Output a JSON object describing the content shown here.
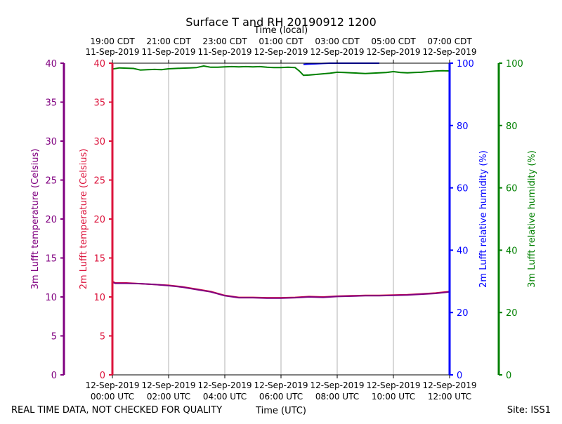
{
  "chart_data": {
    "type": "line",
    "title": "Surface T and RH 20190912 1200",
    "top_axis_label": "Time (local)",
    "xlabel": "Time (UTC)",
    "footer_left": "REAL TIME DATA, NOT CHECKED FOR QUALITY",
    "footer_right": "Site: ISS1",
    "x_range": [
      0,
      12
    ],
    "bottom_ticks": [
      {
        "x": 0,
        "line1": "12-Sep-2019",
        "line2": "00:00 UTC"
      },
      {
        "x": 2,
        "line1": "12-Sep-2019",
        "line2": "02:00 UTC"
      },
      {
        "x": 4,
        "line1": "12-Sep-2019",
        "line2": "04:00 UTC"
      },
      {
        "x": 6,
        "line1": "12-Sep-2019",
        "line2": "06:00 UTC"
      },
      {
        "x": 8,
        "line1": "12-Sep-2019",
        "line2": "08:00 UTC"
      },
      {
        "x": 10,
        "line1": "12-Sep-2019",
        "line2": "10:00 UTC"
      },
      {
        "x": 12,
        "line1": "12-Sep-2019",
        "line2": "12:00 UTC"
      }
    ],
    "top_ticks": [
      {
        "x": 0,
        "line1": "19:00 CDT",
        "line2": "11-Sep-2019"
      },
      {
        "x": 2,
        "line1": "21:00 CDT",
        "line2": "11-Sep-2019"
      },
      {
        "x": 4,
        "line1": "23:00 CDT",
        "line2": "11-Sep-2019"
      },
      {
        "x": 6,
        "line1": "01:00 CDT",
        "line2": "12-Sep-2019"
      },
      {
        "x": 8,
        "line1": "03:00 CDT",
        "line2": "12-Sep-2019"
      },
      {
        "x": 10,
        "line1": "05:00 CDT",
        "line2": "12-Sep-2019"
      },
      {
        "x": 12,
        "line1": "07:00 CDT",
        "line2": "12-Sep-2019"
      }
    ],
    "axes": {
      "t3m": {
        "label": "3m Lufft temperature (Celsius)",
        "color": "#800080",
        "range": [
          0,
          40
        ],
        "ticks": [
          0,
          5,
          10,
          15,
          20,
          25,
          30,
          35,
          40
        ]
      },
      "t2m": {
        "label": "2m Lufft temperature (Celsius)",
        "color": "#dc143c",
        "range": [
          0,
          40
        ],
        "ticks": [
          0,
          5,
          10,
          15,
          20,
          25,
          30,
          35,
          40
        ]
      },
      "rh2m": {
        "label": "2m Lufft relative humidity (%)",
        "color": "#0000ff",
        "range": [
          0,
          100
        ],
        "ticks": [
          0,
          20,
          40,
          60,
          80,
          100
        ]
      },
      "rh3m": {
        "label": "3m Lufft relative humidity (%)",
        "color": "#008000",
        "range": [
          0,
          100
        ],
        "ticks": [
          0,
          20,
          40,
          60,
          80,
          100
        ]
      }
    },
    "grid": "vertical",
    "series": [
      {
        "axis": "rh3m",
        "color": "#008000",
        "x": [
          0,
          0.25,
          0.5,
          0.75,
          1,
          1.25,
          1.5,
          1.75,
          2,
          2.25,
          2.5,
          2.75,
          3,
          3.25,
          3.5,
          3.75,
          4,
          4.25,
          4.5,
          4.75,
          5,
          5.25,
          5.5,
          5.75,
          6,
          6.25,
          6.5,
          6.65,
          6.8,
          7,
          7.25,
          7.5,
          7.75,
          8,
          8.25,
          8.5,
          8.75,
          9,
          9.25,
          9.5,
          9.75,
          10,
          10.25,
          10.5,
          10.75,
          11,
          11.25,
          11.5,
          11.75,
          12
        ],
        "y": [
          98.1,
          98.5,
          98.4,
          98.3,
          97.8,
          97.9,
          98.0,
          97.9,
          98.2,
          98.3,
          98.4,
          98.5,
          98.6,
          99.1,
          98.7,
          98.7,
          98.8,
          98.9,
          98.8,
          98.9,
          98.8,
          98.9,
          98.7,
          98.6,
          98.6,
          98.7,
          98.6,
          97.5,
          96.1,
          96.2,
          96.4,
          96.6,
          96.8,
          97.1,
          97.0,
          96.9,
          96.8,
          96.7,
          96.8,
          96.9,
          97.0,
          97.3,
          97.0,
          96.9,
          97.0,
          97.1,
          97.3,
          97.5,
          97.6,
          97.5
        ]
      },
      {
        "axis": "rh2m",
        "color": "#0000ff",
        "x": [
          6.8,
          7.0,
          7.25,
          7.5,
          7.75,
          8.0,
          8.5,
          9.0,
          9.5
        ],
        "y": [
          99.6,
          99.7,
          99.8,
          99.9,
          100,
          100,
          100,
          100,
          100
        ]
      },
      {
        "axis": "t2m",
        "color": "#dc143c",
        "x": [
          0,
          0.1,
          0.5,
          1,
          1.5,
          2,
          2.5,
          3,
          3.5,
          4,
          4.5,
          5,
          5.5,
          6,
          6.5,
          7,
          7.5,
          8,
          8.5,
          9,
          9.5,
          10,
          10.5,
          11,
          11.5,
          12
        ],
        "y": [
          12.0,
          11.8,
          11.8,
          11.7,
          11.6,
          11.5,
          11.3,
          11.0,
          10.7,
          10.2,
          9.95,
          9.95,
          9.9,
          9.9,
          9.95,
          10.05,
          10.0,
          10.1,
          10.15,
          10.2,
          10.2,
          10.25,
          10.3,
          10.4,
          10.5,
          10.7
        ]
      },
      {
        "axis": "t3m",
        "color": "#800080",
        "x": [
          0,
          0.1,
          0.5,
          1,
          1.5,
          2,
          2.5,
          3,
          3.5,
          4,
          4.5,
          5,
          5.5,
          6,
          6.5,
          7,
          7.5,
          8,
          8.5,
          9,
          9.5,
          10,
          10.5,
          11,
          11.5,
          12
        ],
        "y": [
          11.9,
          11.75,
          11.75,
          11.7,
          11.6,
          11.45,
          11.25,
          10.95,
          10.65,
          10.15,
          9.9,
          9.9,
          9.85,
          9.85,
          9.9,
          10.0,
          9.95,
          10.05,
          10.1,
          10.15,
          10.15,
          10.2,
          10.25,
          10.35,
          10.45,
          10.65
        ]
      }
    ]
  }
}
